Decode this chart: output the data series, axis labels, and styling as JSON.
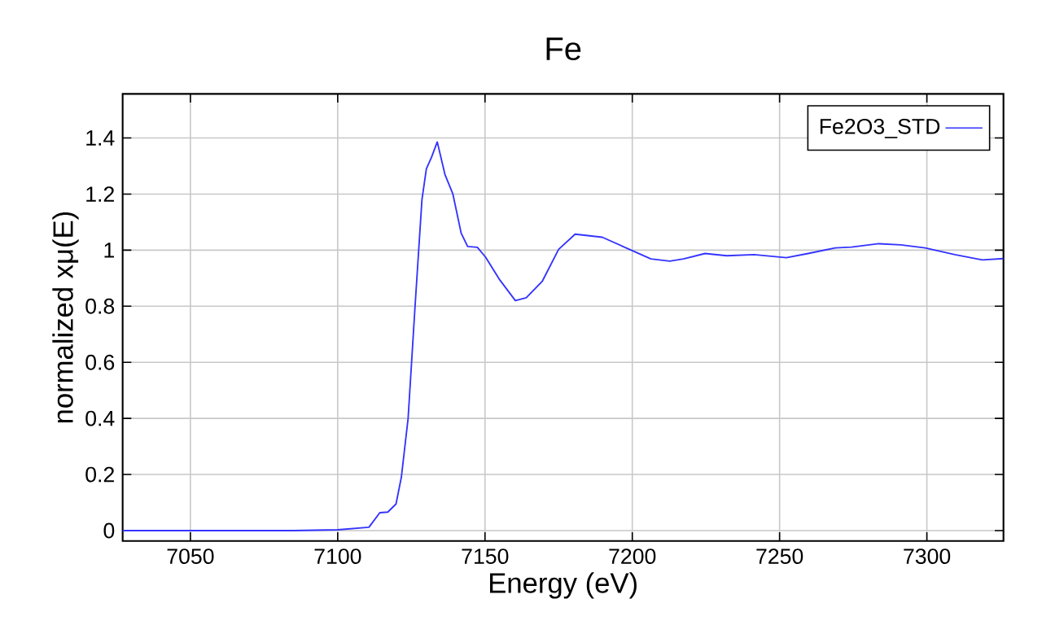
{
  "chart_data": {
    "type": "line",
    "title": "Fe",
    "xlabel": "Energy    (eV)",
    "ylabel": "normalized xμ(E)",
    "xlim": [
      7027,
      7326
    ],
    "ylim": [
      -0.037,
      1.557
    ],
    "xticks": [
      7050,
      7100,
      7150,
      7200,
      7250,
      7300
    ],
    "yticks": [
      0,
      0.2,
      0.4,
      0.6,
      0.8,
      1,
      1.2,
      1.4
    ],
    "grid": true,
    "legend": "top right",
    "marker": "none",
    "line_style": "solid",
    "x": [
      7027,
      7050,
      7085,
      7100,
      7110.6,
      7114.3,
      7117.0,
      7119.8,
      7121.6,
      7123.9,
      7126.2,
      7128.6,
      7130.1,
      7131.8,
      7133.8,
      7136.4,
      7139.1,
      7141.9,
      7144.1,
      7147.4,
      7150.2,
      7154.8,
      7160.3,
      7164.0,
      7169.5,
      7175.0,
      7180.6,
      7189.8,
      7199.0,
      7206.3,
      7212.7,
      7217.4,
      7224.7,
      7232.1,
      7241.3,
      7252.3,
      7259.7,
      7268.9,
      7274.4,
      7283.7,
      7291.1,
      7299.4,
      7309.5,
      7318.8,
      7326
    ],
    "series": [
      {
        "name": "Fe2O3_STD",
        "color": "#3333ff",
        "values": [
          0,
          0,
          0,
          0.003,
          0.012,
          0.064,
          0.066,
          0.095,
          0.19,
          0.4,
          0.79,
          1.18,
          1.29,
          1.33,
          1.386,
          1.27,
          1.2,
          1.061,
          1.013,
          1.01,
          0.975,
          0.897,
          0.82,
          0.83,
          0.89,
          1.003,
          1.057,
          1.046,
          1.003,
          0.969,
          0.961,
          0.969,
          0.988,
          0.98,
          0.984,
          0.973,
          0.988,
          1.008,
          1.011,
          1.023,
          1.019,
          1.008,
          0.984,
          0.965,
          0.97
        ]
      }
    ]
  }
}
